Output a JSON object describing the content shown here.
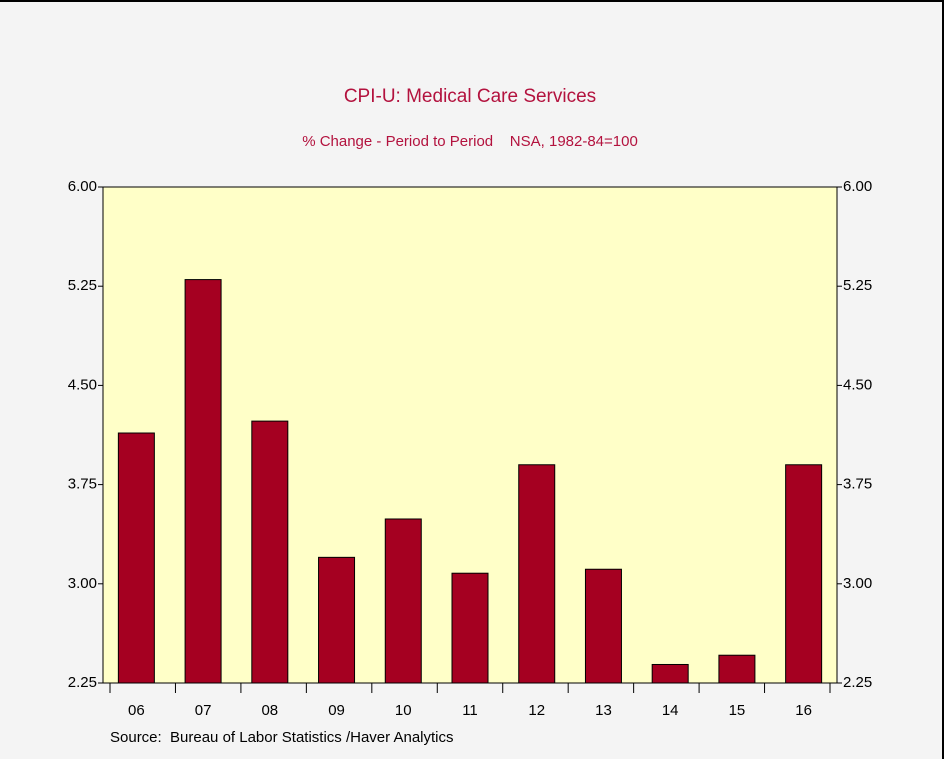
{
  "chart_data": {
    "type": "bar",
    "title": "CPI-U: Medical Care Services",
    "subtitle": "% Change - Period to Period    NSA, 1982-84=100",
    "source": "Source:  Bureau of Labor Statistics /Haver Analytics",
    "categories": [
      "06",
      "07",
      "08",
      "09",
      "10",
      "11",
      "12",
      "13",
      "14",
      "15",
      "16"
    ],
    "values": [
      4.14,
      5.3,
      4.23,
      3.2,
      3.49,
      3.08,
      3.9,
      3.11,
      2.39,
      2.46,
      3.9
    ],
    "color": "#a50021",
    "ylim": [
      2.25,
      6.0
    ],
    "yticks": [
      {
        "value": 2.25,
        "label": "2.25"
      },
      {
        "value": 3.0,
        "label": "3.00"
      },
      {
        "value": 3.75,
        "label": "3.75"
      },
      {
        "value": 4.5,
        "label": "4.50"
      },
      {
        "value": 5.25,
        "label": "5.25"
      },
      {
        "value": 6.0,
        "label": "6.00"
      }
    ],
    "y2lim": [
      2.25,
      6.0
    ],
    "y2ticks": [
      {
        "value": 2.25,
        "label": "2.25"
      },
      {
        "value": 3.0,
        "label": "3.00"
      },
      {
        "value": 3.75,
        "label": "3.75"
      },
      {
        "value": 4.5,
        "label": "4.50"
      },
      {
        "value": 5.25,
        "label": "5.25"
      },
      {
        "value": 6.0,
        "label": "6.00"
      }
    ]
  }
}
